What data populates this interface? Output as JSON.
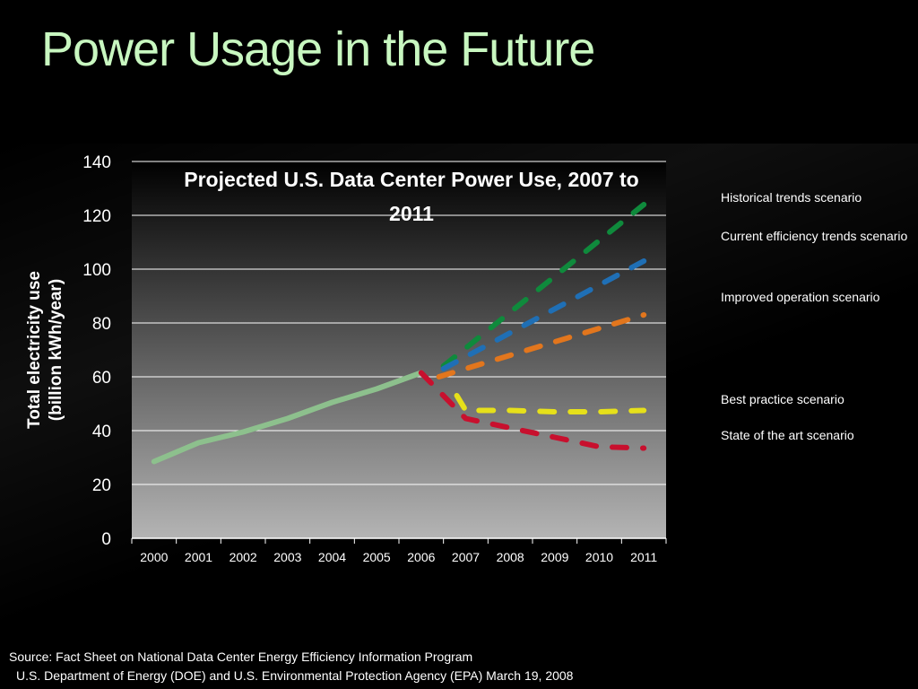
{
  "slide": {
    "title": "Power Usage in the Future",
    "source_line1": "Source: Fact Sheet on National Data Center Energy Efficiency Information Program",
    "source_line2": "U.S. Department of Energy (DOE) and U.S. Environmental Protection Agency (EPA) March 19, 2008"
  },
  "chart_data": {
    "type": "line",
    "title_line1": "Projected U.S. Data Center Power Use, 2007 to",
    "title_line2": "2011",
    "ylabel_line1": "Total electricity use",
    "ylabel_line2": "(billion kWh/year)",
    "xlabel": "",
    "ylim": [
      0,
      140
    ],
    "yticks": [
      "0",
      "20",
      "40",
      "60",
      "80",
      "100",
      "120",
      "140"
    ],
    "categories": [
      "2000",
      "2001",
      "2002",
      "2003",
      "2004",
      "2005",
      "2006",
      "2007",
      "2008",
      "2009",
      "2010",
      "2011"
    ],
    "grid": true,
    "legend_position": "right",
    "historical": {
      "color": "#8dc08d",
      "x": [
        2000,
        2001,
        2002,
        2003,
        2004,
        2005,
        2006
      ],
      "y": [
        28.5,
        35.5,
        39.5,
        44.5,
        50.5,
        55.5,
        61.5
      ]
    },
    "series": [
      {
        "name": "Historical trends scenario",
        "color": "#0f8a3c",
        "x": [
          2006.5,
          2011
        ],
        "y": [
          64,
          124
        ]
      },
      {
        "name": "Current efficiency trends scenario",
        "color": "#1f6fb5",
        "x": [
          2006.5,
          2011
        ],
        "y": [
          63,
          103
        ]
      },
      {
        "name": "Improved operation scenario",
        "color": "#e2761d",
        "x": [
          2006.4,
          2011
        ],
        "y": [
          60,
          83
        ]
      },
      {
        "name": "Best practice scenario",
        "color": "#e6e01a",
        "x": [
          2006.8,
          2007,
          2008,
          2009,
          2010,
          2011
        ],
        "y": [
          53,
          47.5,
          47.5,
          47,
          47,
          47.5
        ]
      },
      {
        "name": "State of the art scenario",
        "color": "#c8102e",
        "x": [
          2006,
          2007,
          2008,
          2009,
          2010,
          2011
        ],
        "y": [
          61.5,
          44.5,
          41,
          37.5,
          34,
          33.5
        ]
      }
    ]
  }
}
